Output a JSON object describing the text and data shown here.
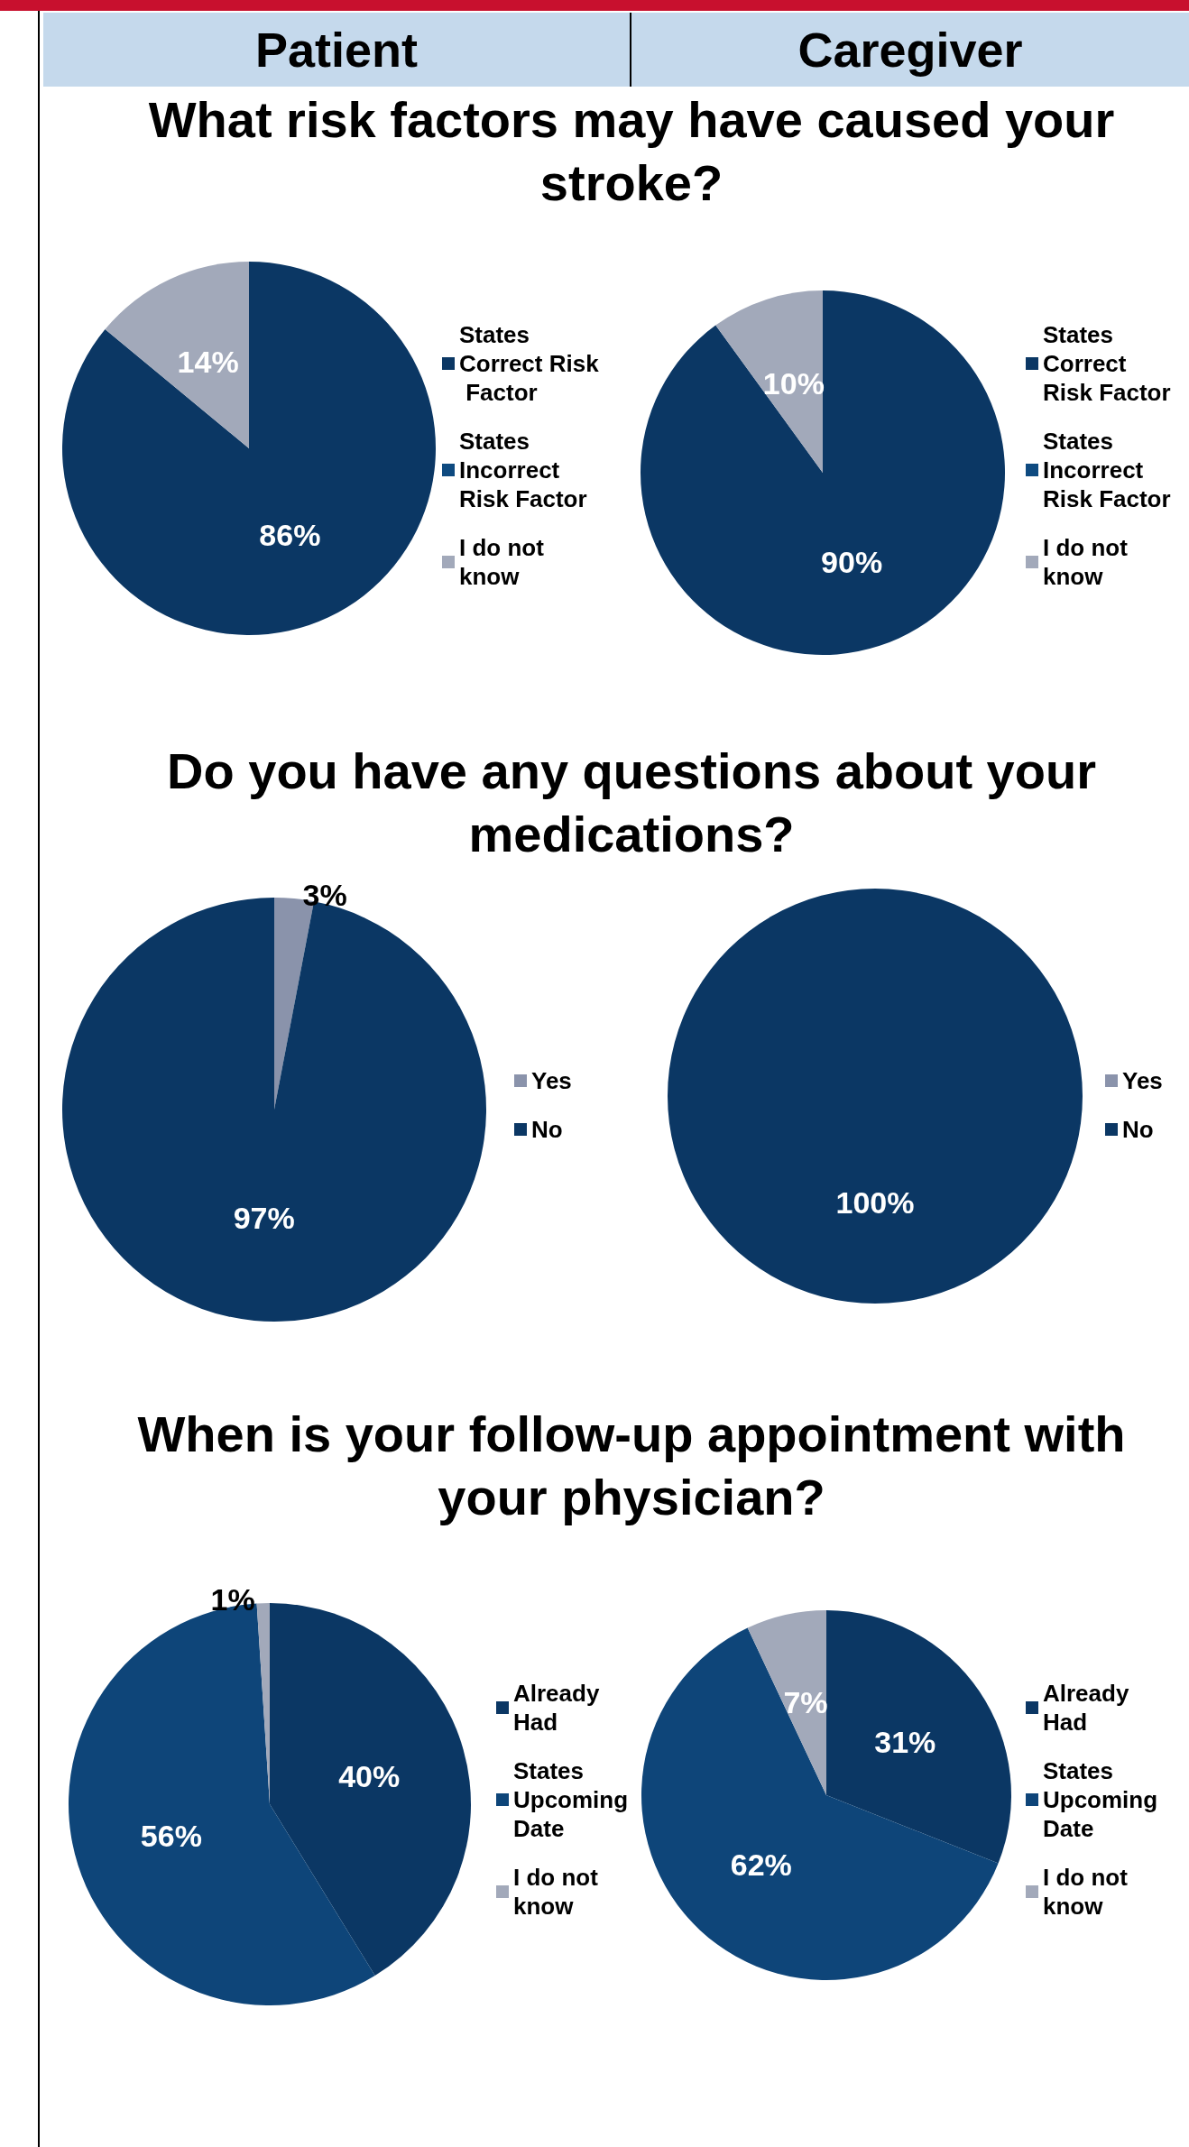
{
  "chart_data": [
    {
      "type": "pie",
      "title": "What risk factors may have caused your stroke?",
      "annotations": [
        "Patient"
      ],
      "categories": [
        "States Correct Risk Factor",
        "States Incorrect Risk Factor",
        "I do not know"
      ],
      "values": [
        86,
        0,
        14
      ],
      "value_labels": [
        "86%",
        null,
        "14%"
      ],
      "colors": [
        "#0b3764",
        "#0e4a80",
        "#a2a9ba"
      ],
      "legend": "right"
    },
    {
      "type": "pie",
      "annotations": [
        "Caregiver"
      ],
      "categories": [
        "States Correct Risk Factor",
        "States Incorrect Risk Factor",
        "I do not know"
      ],
      "values": [
        90,
        0,
        10
      ],
      "value_labels": [
        "90%",
        null,
        "10%"
      ],
      "colors": [
        "#0b3764",
        "#0e4a80",
        "#a2a9ba"
      ],
      "legend": "right"
    },
    {
      "type": "pie",
      "title": "Do you have any questions about your medications?",
      "categories": [
        "Yes",
        "No"
      ],
      "values": [
        3,
        97
      ],
      "value_labels": [
        "3%",
        "97%"
      ],
      "colors": [
        "#8a93ab",
        "#0b3764"
      ],
      "legend": "right"
    },
    {
      "type": "pie",
      "categories": [
        "Yes",
        "No"
      ],
      "values": [
        0,
        100
      ],
      "value_labels": [
        null,
        "100%"
      ],
      "colors": [
        "#8a93ab",
        "#0b3764"
      ],
      "legend": "right"
    },
    {
      "type": "pie",
      "title": "When is your follow-up appointment with your physician?",
      "categories": [
        "Already Had",
        "States Upcoming Date",
        "I do not know"
      ],
      "values": [
        40,
        56,
        1
      ],
      "value_labels": [
        "40%",
        "56%",
        "1%"
      ],
      "colors": [
        "#0b3764",
        "#0e4579",
        "#a2a9ba"
      ],
      "legend": "right"
    },
    {
      "type": "pie",
      "categories": [
        "Already Had",
        "States Upcoming Date",
        "I do not know"
      ],
      "values": [
        31,
        62,
        7
      ],
      "value_labels": [
        "31%",
        "62%",
        "7%"
      ],
      "colors": [
        "#0b3764",
        "#0e4579",
        "#a2a9ba"
      ],
      "legend": "right"
    }
  ]
}
